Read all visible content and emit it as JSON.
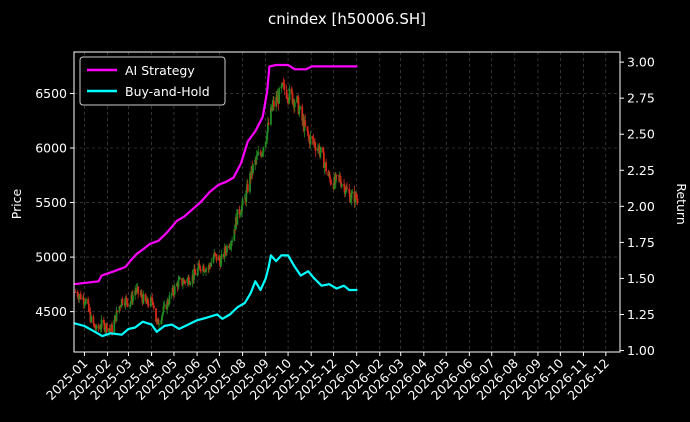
{
  "chart_data": {
    "type": "line",
    "title": "cnindex [h50006.SH]",
    "xlabel": "",
    "ylabel_left": "Price",
    "ylabel_right": "Return",
    "x_tick_labels": [
      "2025-01",
      "2025-02",
      "2025-03",
      "2025-04",
      "2025-05",
      "2025-06",
      "2025-07",
      "2025-08",
      "2025-09",
      "2025-10",
      "2025-11",
      "2025-12",
      "2026-01",
      "2026-02",
      "2026-03",
      "2026-04",
      "2026-05",
      "2026-06",
      "2026-07",
      "2026-08",
      "2026-09",
      "2026-10",
      "2026-11",
      "2026-12"
    ],
    "x_range": [
      "2024-12-18",
      "2026-12-20"
    ],
    "y_left_ticks": [
      4500,
      5000,
      5500,
      6000,
      6500
    ],
    "y_left_range": [
      4130,
      6880
    ],
    "y_right_ticks": [
      1.0,
      1.25,
      1.5,
      1.75,
      2.0,
      2.25,
      2.5,
      2.75,
      3.0
    ],
    "y_right_ticks_labels": [
      "1.00",
      "1.25",
      "1.50",
      "1.75",
      "2.00",
      "2.25",
      "2.50",
      "2.75",
      "3.00"
    ],
    "y_right_range": [
      0.99,
      3.07
    ],
    "grid": true,
    "legend_position": "top-left",
    "price_candles": {
      "axis": "left",
      "up_color": "#228b22",
      "down_color": "#d42a1a",
      "close_points": [
        [
          "2024-12-20",
          4680
        ],
        [
          "2025-01-03",
          4600
        ],
        [
          "2025-01-10",
          4420
        ],
        [
          "2025-01-17",
          4330
        ],
        [
          "2025-01-24",
          4380
        ],
        [
          "2025-02-07",
          4340
        ],
        [
          "2025-02-14",
          4500
        ],
        [
          "2025-02-21",
          4620
        ],
        [
          "2025-03-03",
          4580
        ],
        [
          "2025-03-10",
          4700
        ],
        [
          "2025-03-17",
          4650
        ],
        [
          "2025-03-25",
          4570
        ],
        [
          "2025-04-03",
          4600
        ],
        [
          "2025-04-08",
          4380
        ],
        [
          "2025-04-15",
          4480
        ],
        [
          "2025-04-25",
          4620
        ],
        [
          "2025-05-06",
          4760
        ],
        [
          "2025-05-15",
          4780
        ],
        [
          "2025-05-26",
          4820
        ],
        [
          "2025-06-06",
          4920
        ],
        [
          "2025-06-16",
          4900
        ],
        [
          "2025-06-24",
          5010
        ],
        [
          "2025-07-03",
          4960
        ],
        [
          "2025-07-10",
          5080
        ],
        [
          "2025-07-18",
          5180
        ],
        [
          "2025-07-25",
          5380
        ],
        [
          "2025-08-04",
          5520
        ],
        [
          "2025-08-12",
          5760
        ],
        [
          "2025-08-20",
          5900
        ],
        [
          "2025-08-27",
          5980
        ],
        [
          "2025-09-03",
          6150
        ],
        [
          "2025-09-10",
          6380
        ],
        [
          "2025-09-17",
          6450
        ],
        [
          "2025-09-24",
          6550
        ],
        [
          "2025-10-01",
          6500
        ],
        [
          "2025-10-13",
          6420
        ],
        [
          "2025-10-20",
          6250
        ],
        [
          "2025-10-28",
          6100
        ],
        [
          "2025-11-04",
          6050
        ],
        [
          "2025-11-11",
          6000
        ],
        [
          "2025-11-18",
          5880
        ],
        [
          "2025-11-25",
          5720
        ],
        [
          "2025-12-02",
          5680
        ],
        [
          "2025-12-09",
          5720
        ],
        [
          "2025-12-16",
          5640
        ],
        [
          "2025-12-23",
          5560
        ],
        [
          "2026-01-02",
          5540
        ]
      ]
    },
    "series": [
      {
        "name": "AI Strategy",
        "axis": "right",
        "color": "#ff00ff",
        "points": [
          [
            "2024-12-18",
            1.46
          ],
          [
            "2025-01-20",
            1.48
          ],
          [
            "2025-01-24",
            1.52
          ],
          [
            "2025-02-10",
            1.55
          ],
          [
            "2025-02-25",
            1.58
          ],
          [
            "2025-03-05",
            1.63
          ],
          [
            "2025-03-12",
            1.67
          ],
          [
            "2025-03-20",
            1.7
          ],
          [
            "2025-03-30",
            1.74
          ],
          [
            "2025-04-10",
            1.76
          ],
          [
            "2025-04-22",
            1.82
          ],
          [
            "2025-05-05",
            1.9
          ],
          [
            "2025-05-15",
            1.93
          ],
          [
            "2025-05-26",
            1.98
          ],
          [
            "2025-06-06",
            2.03
          ],
          [
            "2025-06-18",
            2.1
          ],
          [
            "2025-06-30",
            2.15
          ],
          [
            "2025-07-10",
            2.17
          ],
          [
            "2025-07-20",
            2.2
          ],
          [
            "2025-07-30",
            2.3
          ],
          [
            "2025-08-08",
            2.45
          ],
          [
            "2025-08-18",
            2.52
          ],
          [
            "2025-08-28",
            2.62
          ],
          [
            "2025-09-03",
            2.8
          ],
          [
            "2025-09-06",
            2.97
          ],
          [
            "2025-09-15",
            2.98
          ],
          [
            "2025-10-01",
            2.98
          ],
          [
            "2025-10-10",
            2.95
          ],
          [
            "2025-10-25",
            2.95
          ],
          [
            "2025-11-02",
            2.97
          ],
          [
            "2025-11-15",
            2.97
          ],
          [
            "2025-12-01",
            2.97
          ],
          [
            "2026-01-02",
            2.97
          ]
        ]
      },
      {
        "name": "Buy-and-Hold",
        "axis": "right",
        "color": "#00ffff",
        "points": [
          [
            "2024-12-18",
            1.19
          ],
          [
            "2025-01-01",
            1.17
          ],
          [
            "2025-01-15",
            1.13
          ],
          [
            "2025-01-25",
            1.1
          ],
          [
            "2025-02-05",
            1.12
          ],
          [
            "2025-02-20",
            1.11
          ],
          [
            "2025-03-01",
            1.15
          ],
          [
            "2025-03-10",
            1.16
          ],
          [
            "2025-03-20",
            1.2
          ],
          [
            "2025-04-01",
            1.18
          ],
          [
            "2025-04-08",
            1.13
          ],
          [
            "2025-04-18",
            1.17
          ],
          [
            "2025-04-28",
            1.18
          ],
          [
            "2025-05-08",
            1.15
          ],
          [
            "2025-05-20",
            1.18
          ],
          [
            "2025-06-01",
            1.21
          ],
          [
            "2025-06-15",
            1.23
          ],
          [
            "2025-06-28",
            1.25
          ],
          [
            "2025-07-05",
            1.22
          ],
          [
            "2025-07-15",
            1.25
          ],
          [
            "2025-07-25",
            1.3
          ],
          [
            "2025-08-04",
            1.33
          ],
          [
            "2025-08-12",
            1.4
          ],
          [
            "2025-08-18",
            1.48
          ],
          [
            "2025-08-25",
            1.42
          ],
          [
            "2025-09-01",
            1.5
          ],
          [
            "2025-09-05",
            1.58
          ],
          [
            "2025-09-08",
            1.66
          ],
          [
            "2025-09-15",
            1.62
          ],
          [
            "2025-09-22",
            1.66
          ],
          [
            "2025-10-01",
            1.66
          ],
          [
            "2025-10-10",
            1.58
          ],
          [
            "2025-10-18",
            1.52
          ],
          [
            "2025-10-28",
            1.55
          ],
          [
            "2025-11-05",
            1.5
          ],
          [
            "2025-11-15",
            1.45
          ],
          [
            "2025-11-25",
            1.46
          ],
          [
            "2025-12-05",
            1.43
          ],
          [
            "2025-12-15",
            1.45
          ],
          [
            "2025-12-22",
            1.42
          ],
          [
            "2026-01-02",
            1.42
          ]
        ]
      }
    ]
  }
}
